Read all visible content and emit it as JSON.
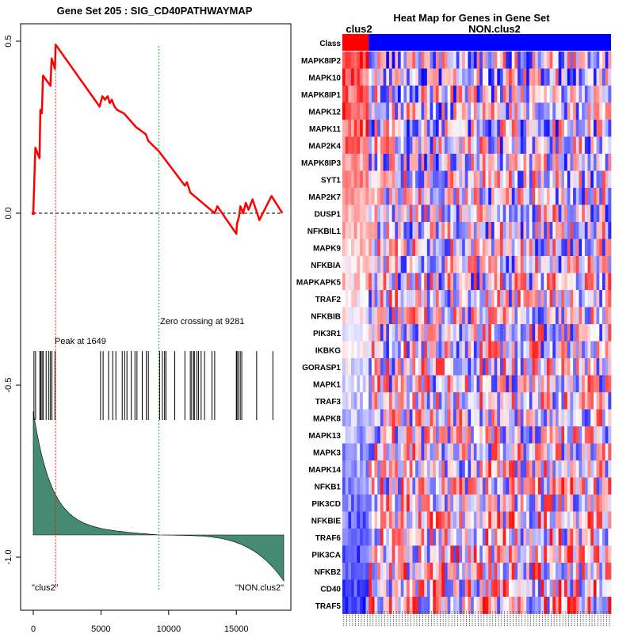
{
  "chart_data": [
    {
      "type": "line",
      "title": "Gene Set  205 : SIG_CD40PATHWAYMAP",
      "xlim": [
        0,
        18500
      ],
      "ylim": [
        -1.1,
        0.55
      ],
      "x_ticks": [
        "0",
        "5000",
        "10000",
        "15000"
      ],
      "y_ticks": [
        "0.5",
        "0.0",
        "-0.5",
        "-1.0"
      ],
      "x_tick_values": [
        0,
        5000,
        10000,
        15000
      ],
      "y_tick_values": [
        0.5,
        0.0,
        -0.5,
        -1.0
      ],
      "peak": {
        "label": "Peak at 1649",
        "x": 1649
      },
      "zero_crossing": {
        "label": "Zero crossing at 9281",
        "x": 9281
      },
      "left_label": "\"clus2\"",
      "right_label": "\"NON.clus2\"",
      "colors": {
        "es_line": "#ff0000",
        "peak_line": "#ff0000",
        "zero_line": "#00cc00",
        "ranked_fill": "#458b74"
      },
      "es_curve": [
        [
          0,
          0.0
        ],
        [
          150,
          0.19
        ],
        [
          460,
          0.16
        ],
        [
          520,
          0.3
        ],
        [
          630,
          0.29
        ],
        [
          720,
          0.4
        ],
        [
          1270,
          0.37
        ],
        [
          1350,
          0.45
        ],
        [
          1600,
          0.42
        ],
        [
          1649,
          0.49
        ],
        [
          4900,
          0.31
        ],
        [
          5100,
          0.34
        ],
        [
          5300,
          0.33
        ],
        [
          5500,
          0.34
        ],
        [
          5650,
          0.32
        ],
        [
          5800,
          0.33
        ],
        [
          6000,
          0.31
        ],
        [
          6200,
          0.3
        ],
        [
          6700,
          0.29
        ],
        [
          7600,
          0.25
        ],
        [
          8300,
          0.23
        ],
        [
          8500,
          0.21
        ],
        [
          9281,
          0.18
        ],
        [
          11200,
          0.08
        ],
        [
          11350,
          0.09
        ],
        [
          11600,
          0.06
        ],
        [
          13400,
          0.0
        ],
        [
          13600,
          0.02
        ],
        [
          15000,
          -0.06
        ],
        [
          15050,
          -0.03
        ],
        [
          15200,
          -0.01
        ],
        [
          15300,
          0.02
        ],
        [
          15500,
          0.0
        ],
        [
          15700,
          0.03
        ],
        [
          15900,
          0.01
        ],
        [
          16200,
          0.04
        ],
        [
          16700,
          -0.02
        ],
        [
          17600,
          0.05
        ],
        [
          18400,
          0.0
        ]
      ],
      "hit_positions": [
        50,
        170,
        480,
        560,
        650,
        740,
        950,
        1150,
        1270,
        1380,
        1600,
        4970,
        5160,
        5560,
        5870,
        6100,
        6570,
        6750,
        6920,
        7240,
        7510,
        7660,
        8050,
        8350,
        8500,
        9330,
        9540,
        9700,
        9800,
        10450,
        11200,
        11600,
        11700,
        11850,
        11900,
        12080,
        12200,
        12400,
        12650,
        13200,
        13400,
        15000,
        15050,
        15150,
        15290,
        15400,
        16500,
        17700
      ]
    },
    {
      "type": "heatmap",
      "title": "Heat Map for Genes in Gene Set",
      "class_label": "Class",
      "groups": [
        {
          "name": "clus2",
          "color": "#ff0000",
          "n_samples": 9
        },
        {
          "name": "NON.clus2",
          "color": "#0000ff",
          "n_samples": 83
        }
      ],
      "genes": [
        "MAPK8IP2",
        "MAPK10",
        "MAPK8IP1",
        "MAPK12",
        "MAPK11",
        "MAP2K4",
        "MAPK8IP3",
        "SYT1",
        "MAP2K7",
        "DUSP1",
        "NFKBIL1",
        "MAPK9",
        "NFKBIA",
        "MAPKAPK5",
        "TRAF2",
        "NFKBIB",
        "PIK3R1",
        "IKBKG",
        "GORASP1",
        "MAPK1",
        "TRAF3",
        "MAPK8",
        "MAPK13",
        "MAPK3",
        "MAPK14",
        "NFKB1",
        "PIK3CD",
        "NFKBIE",
        "TRAF6",
        "PIK3CA",
        "NFKB2",
        "CD40",
        "TRAF5"
      ],
      "colors": {
        "low": "#0000ff",
        "mid": "#ffffff",
        "high": "#ff0000"
      }
    }
  ]
}
